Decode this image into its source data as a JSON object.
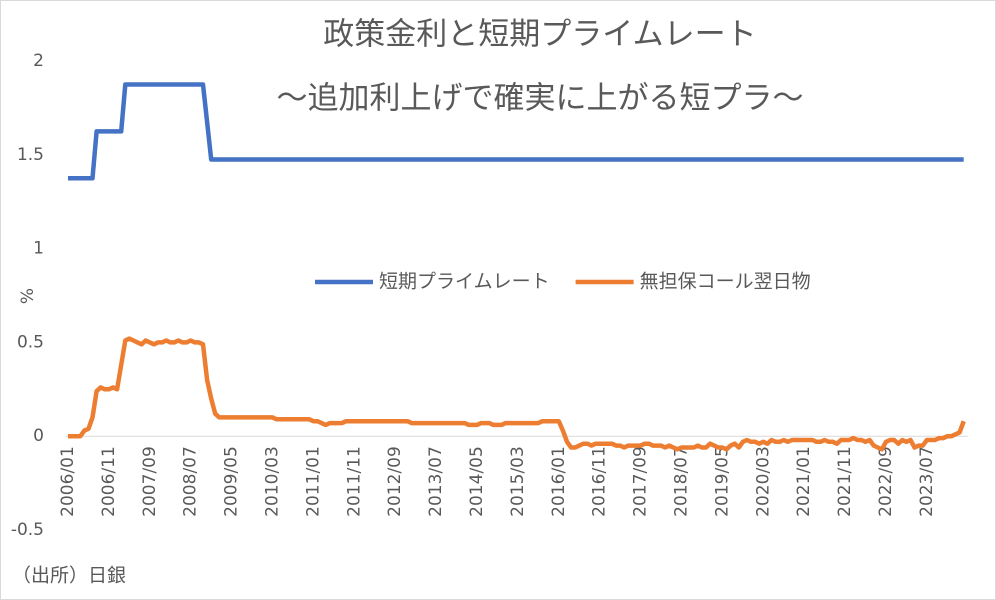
{
  "chart_data": {
    "type": "line",
    "title": "政策金利と短期プライムレート",
    "subtitle": "〜追加利上げで確実に上がる短プラ〜",
    "y_label": "%",
    "source": "（出所）日銀",
    "categories": [
      "2006/01",
      null,
      null,
      null,
      null,
      null,
      null,
      null,
      null,
      null,
      "2006/11",
      null,
      null,
      null,
      null,
      null,
      null,
      null,
      null,
      null,
      "2007/09",
      null,
      null,
      null,
      null,
      null,
      null,
      null,
      null,
      null,
      "2008/07",
      null,
      null,
      null,
      null,
      null,
      null,
      null,
      null,
      null,
      "2009/05",
      null,
      null,
      null,
      null,
      null,
      null,
      null,
      null,
      null,
      "2010/03",
      null,
      null,
      null,
      null,
      null,
      null,
      null,
      null,
      null,
      "2011/01",
      null,
      null,
      null,
      null,
      null,
      null,
      null,
      null,
      null,
      "2011/11",
      null,
      null,
      null,
      null,
      null,
      null,
      null,
      null,
      null,
      "2012/09",
      null,
      null,
      null,
      null,
      null,
      null,
      null,
      null,
      null,
      "2013/07",
      null,
      null,
      null,
      null,
      null,
      null,
      null,
      null,
      null,
      "2014/05",
      null,
      null,
      null,
      null,
      null,
      null,
      null,
      null,
      null,
      "2015/03",
      null,
      null,
      null,
      null,
      null,
      null,
      null,
      null,
      null,
      "2016/01",
      null,
      null,
      null,
      null,
      null,
      null,
      null,
      null,
      null,
      "2016/11",
      null,
      null,
      null,
      null,
      null,
      null,
      null,
      null,
      null,
      "2017/09",
      null,
      null,
      null,
      null,
      null,
      null,
      null,
      null,
      null,
      "2018/07",
      null,
      null,
      null,
      null,
      null,
      null,
      null,
      null,
      null,
      "2019/05",
      null,
      null,
      null,
      null,
      null,
      null,
      null,
      null,
      null,
      "2020/03",
      null,
      null,
      null,
      null,
      null,
      null,
      null,
      null,
      null,
      "2021/01",
      null,
      null,
      null,
      null,
      null,
      null,
      null,
      null,
      null,
      "2021/11",
      null,
      null,
      null,
      null,
      null,
      null,
      null,
      null,
      null,
      "2022/09",
      null,
      null,
      null,
      null,
      null,
      null,
      null,
      null,
      null,
      "2023/07",
      null,
      null,
      null,
      null,
      null,
      null,
      null,
      null,
      null
    ],
    "series": [
      {
        "name": "短期プライムレート",
        "color": "#4472c4",
        "values": [
          1.375,
          1.375,
          1.375,
          1.375,
          1.375,
          1.375,
          1.375,
          1.625,
          1.625,
          1.625,
          1.625,
          1.625,
          1.625,
          1.625,
          1.875,
          1.875,
          1.875,
          1.875,
          1.875,
          1.875,
          1.875,
          1.875,
          1.875,
          1.875,
          1.875,
          1.875,
          1.875,
          1.875,
          1.875,
          1.875,
          1.875,
          1.875,
          1.875,
          1.875,
          1.675,
          1.475,
          1.475,
          1.475,
          1.475,
          1.475,
          1.475,
          1.475,
          1.475,
          1.475,
          1.475,
          1.475,
          1.475,
          1.475,
          1.475,
          1.475,
          1.475,
          1.475,
          1.475,
          1.475,
          1.475,
          1.475,
          1.475,
          1.475,
          1.475,
          1.475,
          1.475,
          1.475,
          1.475,
          1.475,
          1.475,
          1.475,
          1.475,
          1.475,
          1.475,
          1.475,
          1.475,
          1.475,
          1.475,
          1.475,
          1.475,
          1.475,
          1.475,
          1.475,
          1.475,
          1.475,
          1.475,
          1.475,
          1.475,
          1.475,
          1.475,
          1.475,
          1.475,
          1.475,
          1.475,
          1.475,
          1.475,
          1.475,
          1.475,
          1.475,
          1.475,
          1.475,
          1.475,
          1.475,
          1.475,
          1.475,
          1.475,
          1.475,
          1.475,
          1.475,
          1.475,
          1.475,
          1.475,
          1.475,
          1.475,
          1.475,
          1.475,
          1.475,
          1.475,
          1.475,
          1.475,
          1.475,
          1.475,
          1.475,
          1.475,
          1.475,
          1.475,
          1.475,
          1.475,
          1.475,
          1.475,
          1.475,
          1.475,
          1.475,
          1.475,
          1.475,
          1.475,
          1.475,
          1.475,
          1.475,
          1.475,
          1.475,
          1.475,
          1.475,
          1.475,
          1.475,
          1.475,
          1.475,
          1.475,
          1.475,
          1.475,
          1.475,
          1.475,
          1.475,
          1.475,
          1.475,
          1.475,
          1.475,
          1.475,
          1.475,
          1.475,
          1.475,
          1.475,
          1.475,
          1.475,
          1.475,
          1.475,
          1.475,
          1.475,
          1.475,
          1.475,
          1.475,
          1.475,
          1.475,
          1.475,
          1.475,
          1.475,
          1.475,
          1.475,
          1.475,
          1.475,
          1.475,
          1.475,
          1.475,
          1.475,
          1.475,
          1.475,
          1.475,
          1.475,
          1.475,
          1.475,
          1.475,
          1.475,
          1.475,
          1.475,
          1.475,
          1.475,
          1.475,
          1.475,
          1.475,
          1.475,
          1.475,
          1.475,
          1.475,
          1.475,
          1.475,
          1.475,
          1.475,
          1.475,
          1.475,
          1.475,
          1.475,
          1.475,
          1.475,
          1.475,
          1.475,
          1.475,
          1.475,
          1.475,
          1.475,
          1.475,
          1.475,
          1.475,
          1.475,
          1.475,
          1.475
        ]
      },
      {
        "name": "無担保コール翌日物",
        "color": "#ed7d31",
        "values": [
          0,
          0,
          0,
          0,
          0.03,
          0.04,
          0.1,
          0.24,
          0.26,
          0.25,
          0.25,
          0.26,
          0.25,
          0.38,
          0.51,
          0.52,
          0.51,
          0.5,
          0.49,
          0.51,
          0.5,
          0.49,
          0.5,
          0.5,
          0.51,
          0.5,
          0.5,
          0.51,
          0.5,
          0.5,
          0.51,
          0.5,
          0.5,
          0.49,
          0.3,
          0.2,
          0.12,
          0.1,
          0.1,
          0.1,
          0.1,
          0.1,
          0.1,
          0.1,
          0.1,
          0.1,
          0.1,
          0.1,
          0.1,
          0.1,
          0.1,
          0.09,
          0.09,
          0.09,
          0.09,
          0.09,
          0.09,
          0.09,
          0.09,
          0.09,
          0.08,
          0.08,
          0.07,
          0.06,
          0.07,
          0.07,
          0.07,
          0.07,
          0.08,
          0.08,
          0.08,
          0.08,
          0.08,
          0.08,
          0.08,
          0.08,
          0.08,
          0.08,
          0.08,
          0.08,
          0.08,
          0.08,
          0.08,
          0.08,
          0.07,
          0.07,
          0.07,
          0.07,
          0.07,
          0.07,
          0.07,
          0.07,
          0.07,
          0.07,
          0.07,
          0.07,
          0.07,
          0.07,
          0.06,
          0.06,
          0.06,
          0.07,
          0.07,
          0.07,
          0.06,
          0.06,
          0.06,
          0.07,
          0.07,
          0.07,
          0.07,
          0.07,
          0.07,
          0.07,
          0.07,
          0.07,
          0.08,
          0.08,
          0.08,
          0.08,
          0.08,
          0.03,
          -0.03,
          -0.06,
          -0.06,
          -0.05,
          -0.04,
          -0.04,
          -0.05,
          -0.04,
          -0.04,
          -0.04,
          -0.04,
          -0.04,
          -0.05,
          -0.05,
          -0.06,
          -0.05,
          -0.05,
          -0.05,
          -0.05,
          -0.04,
          -0.04,
          -0.05,
          -0.05,
          -0.05,
          -0.06,
          -0.05,
          -0.06,
          -0.07,
          -0.06,
          -0.06,
          -0.06,
          -0.06,
          -0.05,
          -0.06,
          -0.06,
          -0.04,
          -0.05,
          -0.06,
          -0.06,
          -0.07,
          -0.05,
          -0.04,
          -0.06,
          -0.03,
          -0.02,
          -0.03,
          -0.03,
          -0.04,
          -0.03,
          -0.04,
          -0.02,
          -0.03,
          -0.03,
          -0.02,
          -0.03,
          -0.02,
          -0.02,
          -0.02,
          -0.02,
          -0.02,
          -0.02,
          -0.03,
          -0.03,
          -0.02,
          -0.03,
          -0.03,
          -0.04,
          -0.02,
          -0.02,
          -0.02,
          -0.01,
          -0.02,
          -0.02,
          -0.03,
          -0.02,
          -0.05,
          -0.06,
          -0.07,
          -0.03,
          -0.02,
          -0.02,
          -0.04,
          -0.02,
          -0.03,
          -0.02,
          -0.06,
          -0.05,
          -0.05,
          -0.02,
          -0.02,
          -0.02,
          -0.01,
          -0.01,
          0,
          0,
          0.01,
          0.02,
          0.08
        ]
      }
    ],
    "ylim": [
      -0.5,
      2
    ],
    "yticks": [
      -0.5,
      0,
      0.5,
      1,
      1.5,
      2
    ],
    "grid": false,
    "legend": "center"
  }
}
